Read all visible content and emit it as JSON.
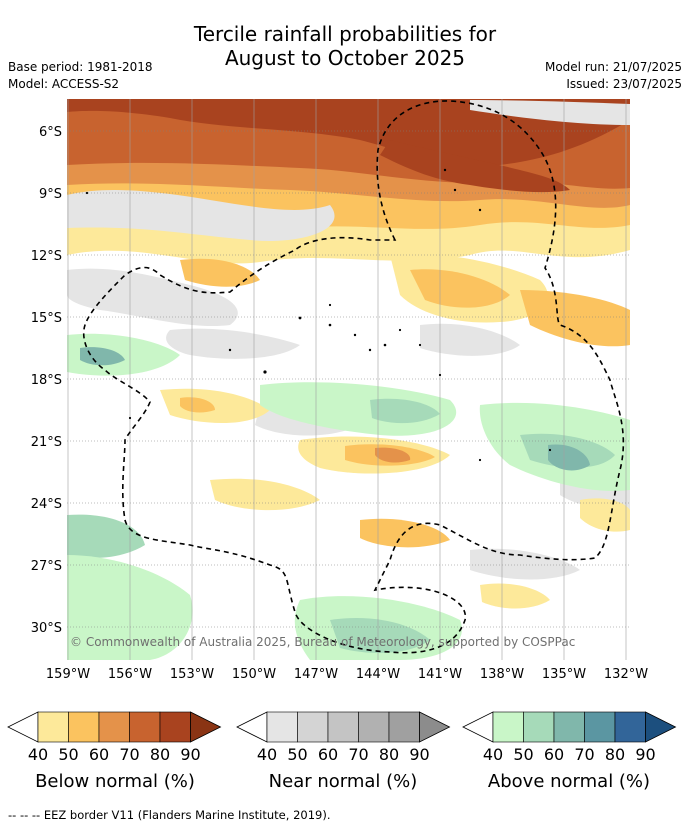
{
  "title": {
    "line1": "Tercile rainfall probabilities for",
    "line2": "August to October 2025"
  },
  "meta": {
    "base_period": "Base period: 1981-2018",
    "model": "Model: ACCESS-S2",
    "model_run": "Model run: 21/07/2025",
    "issued": "Issued: 23/07/2025"
  },
  "map": {
    "lat_ticks": [
      "6°S",
      "9°S",
      "12°S",
      "15°S",
      "18°S",
      "21°S",
      "24°S",
      "27°S",
      "30°S"
    ],
    "lon_ticks": [
      "159°W",
      "156°W",
      "153°W",
      "150°W",
      "147°W",
      "144°W",
      "141°W",
      "138°W",
      "135°W",
      "132°W"
    ],
    "copyright": "© Commonwealth of Australia 2025, Bureau of Meteorology, supported by COSPPac"
  },
  "legends": [
    {
      "label": "Below normal (%)",
      "ticks": [
        "40",
        "50",
        "60",
        "70",
        "80",
        "90"
      ],
      "colors": [
        "#ffffff",
        "#fde99a",
        "#fbc35f",
        "#e4924a",
        "#c8632f",
        "#a9431f",
        "#8a3414"
      ]
    },
    {
      "label": "Near normal (%)",
      "ticks": [
        "40",
        "50",
        "60",
        "70",
        "80",
        "90"
      ],
      "colors": [
        "#ffffff",
        "#e5e5e5",
        "#d4d4d4",
        "#c4c4c4",
        "#b1b1b1",
        "#a0a0a0",
        "#8c8c8c"
      ]
    },
    {
      "label": "Above normal (%)",
      "ticks": [
        "40",
        "50",
        "60",
        "70",
        "80",
        "90"
      ],
      "colors": [
        "#ffffff",
        "#c9f6c8",
        "#a6dab9",
        "#80b7ab",
        "#5b96a2",
        "#326599",
        "#1c4f7e"
      ]
    }
  ],
  "footnote": "-- -- -- EEZ border V11 (Flanders Marine Institute, 2019)."
}
